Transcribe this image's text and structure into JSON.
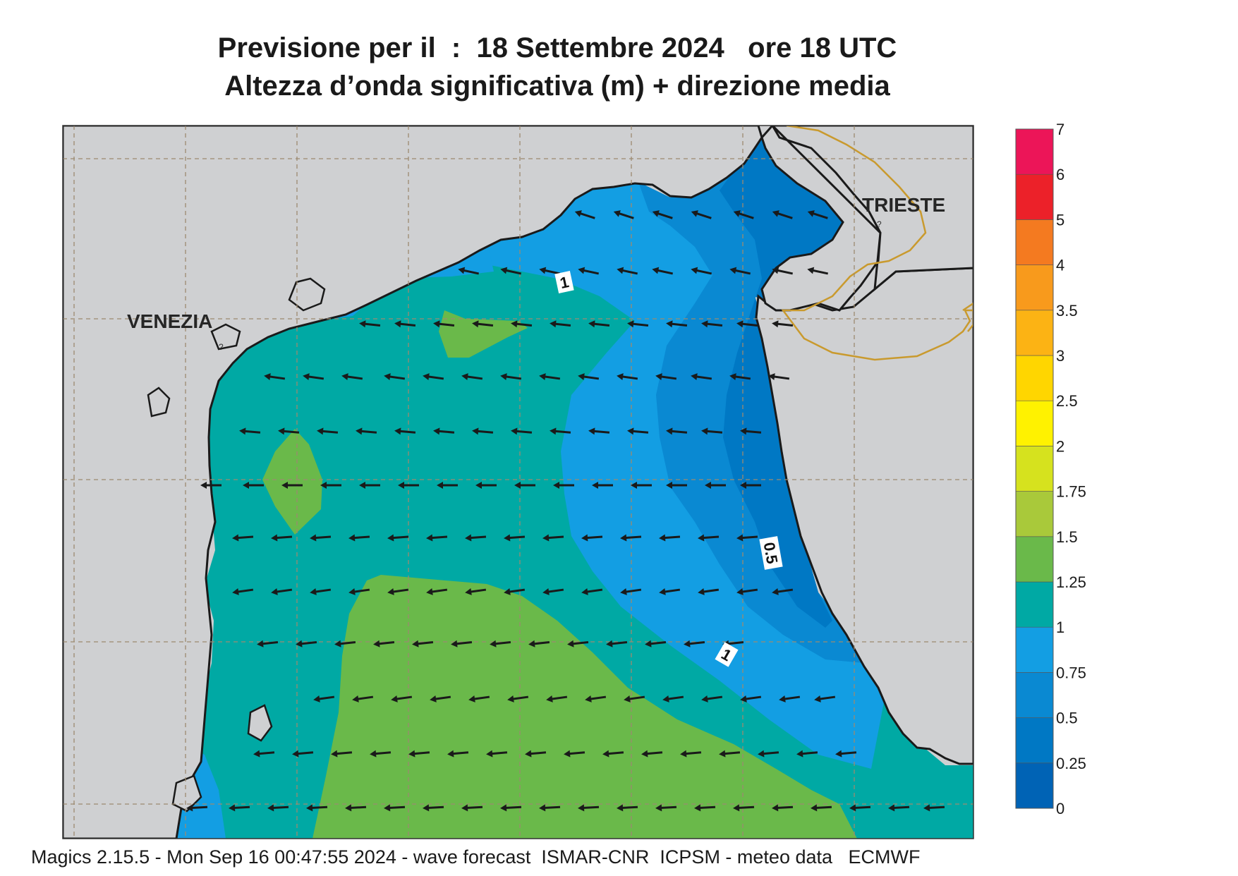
{
  "title": {
    "line1": "Previsione per il  :  18 Settembre 2024   ore 18 UTC",
    "line2": "Altezza d’onda significativa (m) + direzione media"
  },
  "places": {
    "venezia": "VENEZIA",
    "trieste": "TRIESTE",
    "marker": "?"
  },
  "contour_labels": {
    "north_1": "1",
    "east_05": "0.5",
    "south_1": "1"
  },
  "legend": {
    "scale": [
      {
        "value": "0",
        "color": "#0063b5"
      },
      {
        "value": "0.25",
        "color": "#0078c4"
      },
      {
        "value": "0.5",
        "color": "#0a89d2"
      },
      {
        "value": "0.75",
        "color": "#139ee3"
      },
      {
        "value": "1",
        "color": "#00a9a4"
      },
      {
        "value": "1.25",
        "color": "#6ab94a"
      },
      {
        "value": "1.5",
        "color": "#a9c93a"
      },
      {
        "value": "1.75",
        "color": "#d6e21e"
      },
      {
        "value": "2",
        "color": "#fff200"
      },
      {
        "value": "2.5",
        "color": "#ffd600"
      },
      {
        "value": "3",
        "color": "#fcb314"
      },
      {
        "value": "3.5",
        "color": "#f89a1c"
      },
      {
        "value": "4",
        "color": "#f47a20"
      },
      {
        "value": "5",
        "color": "#ec2129"
      },
      {
        "value": "6",
        "color": "#ec1558"
      },
      {
        "value": "7",
        "color": ""
      }
    ]
  },
  "colors": {
    "land": "#cfd0d2",
    "coast": "#1a1a1a",
    "border": "#c99a2e",
    "grid": "#9c8a70",
    "arrow": "#1a1a1a"
  },
  "wave_direction": "west (arrows point toward the Venetian coast)",
  "footer": "Magics 2.15.5 - Mon Sep 16 00:47:55 2024 - wave forecast  ISMAR-CNR  ICPSM - meteo data   ECMWF"
}
